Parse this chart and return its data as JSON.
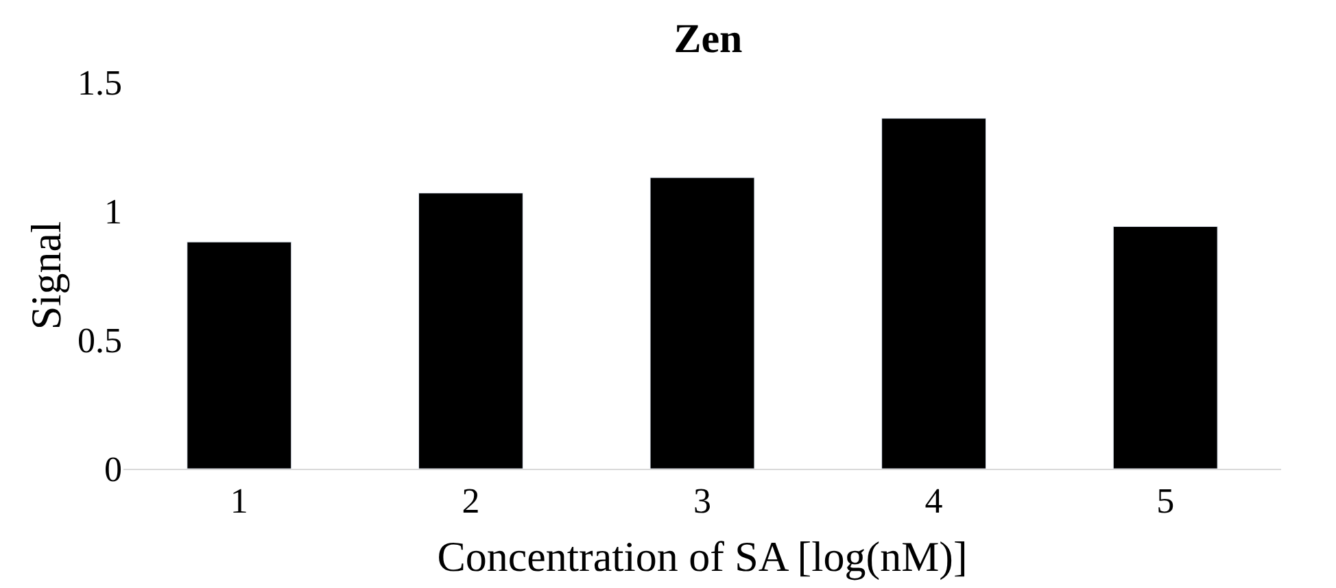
{
  "chart_data": {
    "type": "bar",
    "title": "Zen",
    "xlabel": "Concentration of SA [log(nM)]",
    "ylabel": "Signal",
    "categories": [
      "1",
      "2",
      "3",
      "4",
      "5"
    ],
    "values": [
      0.88,
      1.07,
      1.13,
      1.36,
      0.94
    ],
    "color": "#000000",
    "ylim": [
      0,
      1.5
    ],
    "yticks": [
      0,
      0.5,
      1,
      1.5
    ]
  }
}
